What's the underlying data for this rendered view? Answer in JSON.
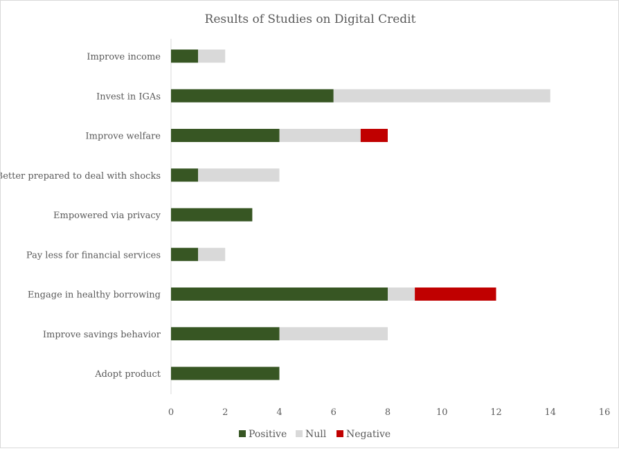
{
  "chart_data": {
    "type": "bar",
    "orientation": "horizontal",
    "stacked": true,
    "title": "Results of Studies on Digital Credit",
    "categories": [
      "Improve income",
      "Invest in IGAs",
      "Improve welfare",
      "Better prepared to deal with shocks",
      "Empowered via privacy",
      "Pay less for financial services",
      "Engage in healthy borrowing",
      "Improve savings behavior",
      "Adopt product"
    ],
    "series": [
      {
        "name": "Positive",
        "color": "#375623",
        "values": [
          1,
          6,
          4,
          1,
          3,
          1,
          8,
          4,
          4
        ]
      },
      {
        "name": "Null",
        "color": "#d9d9d9",
        "values": [
          1,
          8,
          3,
          3,
          0,
          1,
          1,
          4,
          0
        ]
      },
      {
        "name": "Negative",
        "color": "#c00000",
        "values": [
          0,
          0,
          1,
          0,
          0,
          0,
          3,
          0,
          0
        ]
      }
    ],
    "xlim": [
      0,
      16
    ],
    "xticks": [
      "0",
      "2",
      "4",
      "6",
      "8",
      "10",
      "12",
      "14",
      "16"
    ],
    "grid": false,
    "legend_position": "bottom"
  }
}
